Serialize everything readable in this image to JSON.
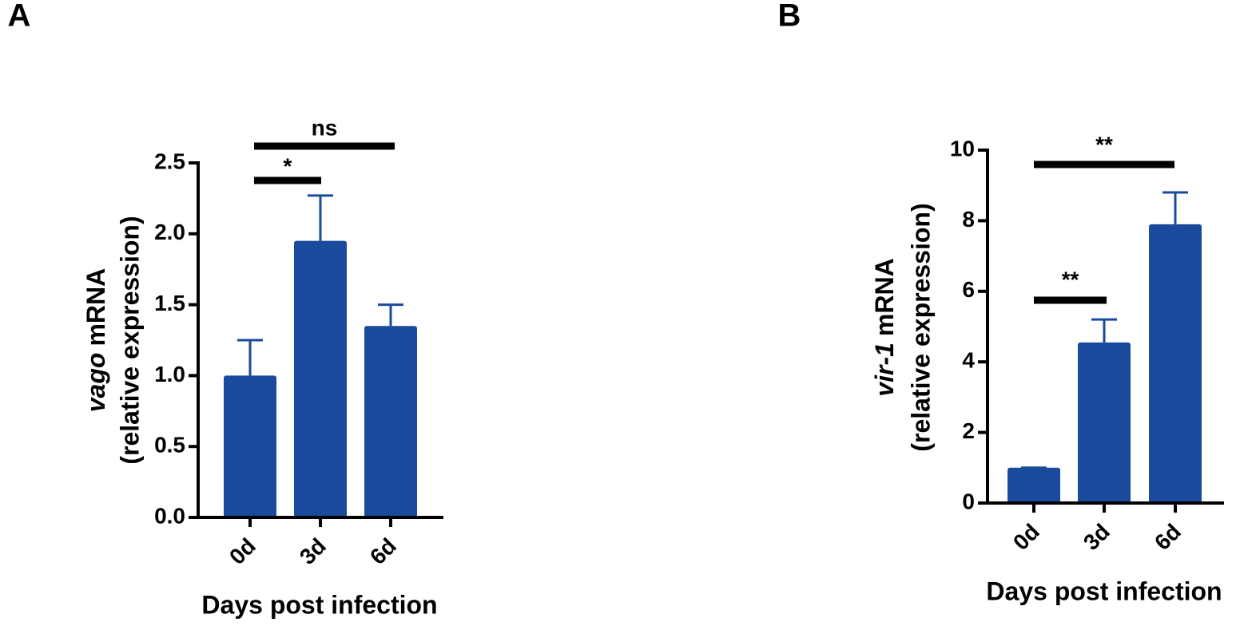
{
  "chart_data": [
    {
      "type": "bar",
      "panel": "A",
      "y_label": {
        "gene": "vago",
        "text": "mRNA",
        "unit": "(relative expression)"
      },
      "x_label": "Days post infection",
      "categories": [
        "0d",
        "3d",
        "6d"
      ],
      "values": [
        1.0,
        1.95,
        1.35
      ],
      "errors": [
        0.25,
        0.32,
        0.15
      ],
      "color": "#1a4a9c",
      "ylim": [
        0,
        2.5
      ],
      "yticks": [
        {
          "value": 0,
          "label": "0.0"
        },
        0.5,
        {
          "value": 1,
          "label": "1.0"
        },
        1.5,
        {
          "value": 2,
          "label": "2.0"
        },
        2.5
      ],
      "annotations": [
        "*",
        "ns"
      ]
    },
    {
      "type": "bar",
      "panel": "B",
      "y_label": {
        "gene": "vir-1",
        "text": "mRNA",
        "unit": "(relative expression)"
      },
      "x_label": "Days post infection",
      "categories": [
        "0d",
        "3d",
        "6d"
      ],
      "values": [
        1.0,
        4.55,
        7.9
      ],
      "errors": [
        0,
        0.65,
        0.9
      ],
      "color": "#1a4a9c",
      "ylim": [
        0,
        10
      ],
      "yticks": [
        0,
        2,
        4,
        6,
        8,
        10
      ],
      "annotations": [
        "**",
        "**"
      ]
    }
  ]
}
